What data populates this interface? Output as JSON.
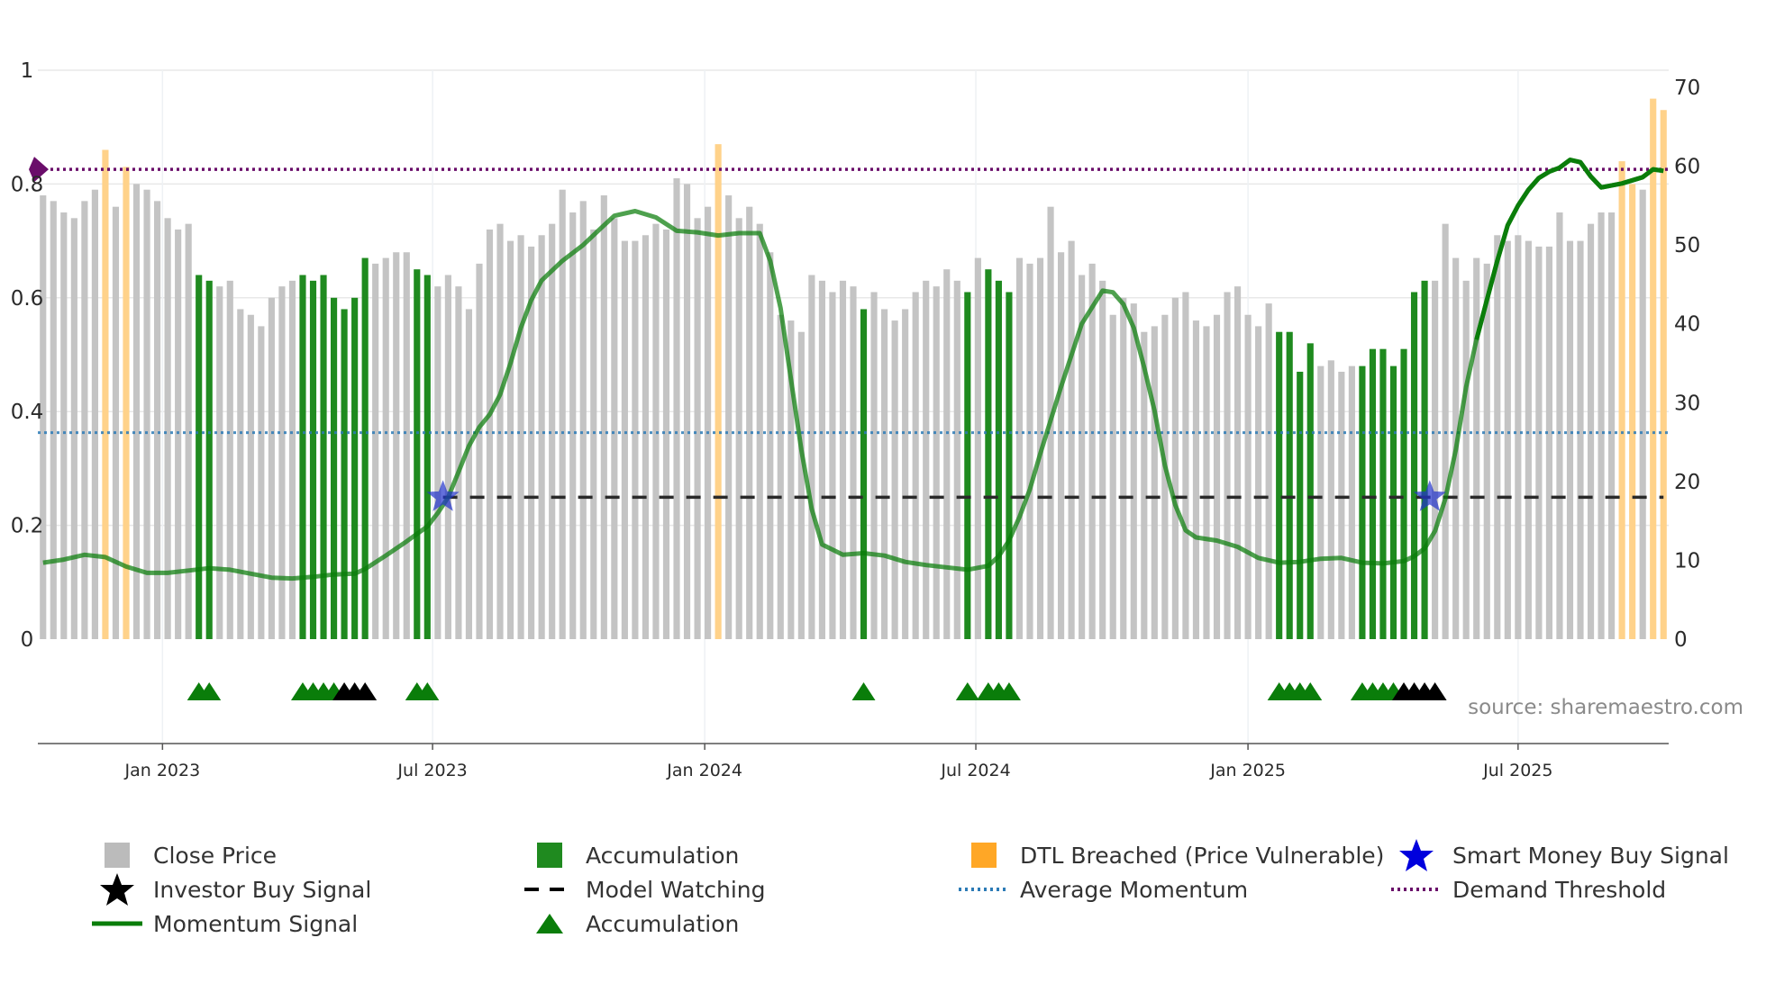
{
  "chart_data": {
    "type": "bar",
    "title": "",
    "source_label": "source: sharemaestro.com",
    "left_axis": {
      "ticks": [
        0,
        0.2,
        0.4,
        0.6,
        0.8,
        1
      ],
      "labels": [
        "0",
        "0.2",
        "0.4",
        "0.6",
        "0.8",
        "1"
      ],
      "ylim": [
        0,
        1
      ]
    },
    "right_axis": {
      "ticks": [
        0,
        10,
        20,
        30,
        40,
        50,
        60,
        70
      ],
      "labels": [
        "0",
        "10",
        "20",
        "30",
        "40",
        "50",
        "60",
        "70"
      ],
      "ylim": [
        0,
        71
      ]
    },
    "x_ticks": [
      {
        "label": "Jan 2023",
        "week": 11.5
      },
      {
        "label": "Jul 2023",
        "week": 37.5
      },
      {
        "label": "Jan 2024",
        "week": 63.7
      },
      {
        "label": "Jul 2024",
        "week": 89.8
      },
      {
        "label": "Jan 2025",
        "week": 116.0
      },
      {
        "label": "Jul 2025",
        "week": 142.0
      }
    ],
    "weeks": 157,
    "close_price": [
      0.78,
      0.77,
      0.75,
      0.74,
      0.77,
      0.79,
      0.86,
      0.76,
      0.83,
      0.8,
      0.79,
      0.77,
      0.74,
      0.72,
      0.73,
      0.64,
      0.63,
      0.62,
      0.63,
      0.58,
      0.57,
      0.55,
      0.6,
      0.62,
      0.63,
      0.64,
      0.63,
      0.64,
      0.6,
      0.58,
      0.6,
      0.67,
      0.66,
      0.67,
      0.68,
      0.68,
      0.65,
      0.64,
      0.62,
      0.64,
      0.62,
      0.58,
      0.66,
      0.72,
      0.73,
      0.7,
      0.71,
      0.69,
      0.71,
      0.73,
      0.79,
      0.75,
      0.77,
      0.72,
      0.78,
      0.74,
      0.7,
      0.7,
      0.71,
      0.73,
      0.72,
      0.81,
      0.8,
      0.74,
      0.76,
      0.87,
      0.78,
      0.74,
      0.76,
      0.73,
      0.68,
      0.57,
      0.56,
      0.54,
      0.64,
      0.63,
      0.61,
      0.63,
      0.62,
      0.58,
      0.61,
      0.58,
      0.56,
      0.58,
      0.61,
      0.63,
      0.62,
      0.65,
      0.63,
      0.61,
      0.67,
      0.65,
      0.63,
      0.61,
      0.67,
      0.66,
      0.67,
      0.76,
      0.68,
      0.7,
      0.64,
      0.66,
      0.63,
      0.57,
      0.6,
      0.59,
      0.54,
      0.55,
      0.57,
      0.6,
      0.61,
      0.56,
      0.55,
      0.57,
      0.61,
      0.62,
      0.57,
      0.55,
      0.59,
      0.54,
      0.54,
      0.47,
      0.52,
      0.48,
      0.49,
      0.47,
      0.48,
      0.48,
      0.51,
      0.51,
      0.48,
      0.51,
      0.61,
      0.63,
      0.63,
      0.73,
      0.67,
      0.63,
      0.67,
      0.66,
      0.71,
      0.7,
      0.71,
      0.7,
      0.69,
      0.69,
      0.75,
      0.7,
      0.7,
      0.73,
      0.75,
      0.75,
      0.84,
      0.8,
      0.79,
      0.95,
      0.93
    ],
    "accumulation_weeks": [
      15,
      16,
      25,
      26,
      27,
      28,
      29,
      30,
      31,
      36,
      37,
      79,
      89,
      91,
      92,
      93,
      119,
      120,
      121,
      122,
      127,
      128,
      129,
      130,
      131,
      132,
      133
    ],
    "dtl_breached_weeks": [
      6,
      8,
      65,
      152,
      153,
      155,
      156
    ],
    "accumulation_triangle_weeks": [
      15,
      16,
      25,
      26,
      27,
      28,
      36,
      37,
      79,
      89,
      91,
      92,
      93,
      119,
      120,
      121,
      122,
      127,
      128,
      129,
      130
    ],
    "investor_buy_triangle_weeks": [
      29,
      30,
      31,
      131,
      132,
      133,
      134
    ],
    "momentum_signal": [
      [
        0,
        9.7
      ],
      [
        2,
        10.1
      ],
      [
        4,
        10.7
      ],
      [
        6,
        10.4
      ],
      [
        8,
        9.2
      ],
      [
        10,
        8.4
      ],
      [
        12,
        8.4
      ],
      [
        14,
        8.7
      ],
      [
        16,
        9.0
      ],
      [
        18,
        8.8
      ],
      [
        20,
        8.3
      ],
      [
        22,
        7.8
      ],
      [
        24,
        7.7
      ],
      [
        26,
        7.9
      ],
      [
        28,
        8.2
      ],
      [
        30,
        8.3
      ],
      [
        31,
        8.9
      ],
      [
        33,
        10.6
      ],
      [
        35,
        12.4
      ],
      [
        37,
        14.3
      ],
      [
        38,
        16.0
      ],
      [
        39,
        18.0
      ],
      [
        40,
        21.2
      ],
      [
        41,
        24.5
      ],
      [
        42,
        26.9
      ],
      [
        43,
        28.5
      ],
      [
        44,
        31.0
      ],
      [
        45,
        35.0
      ],
      [
        46,
        39.5
      ],
      [
        47,
        43.0
      ],
      [
        48,
        45.5
      ],
      [
        50,
        48.0
      ],
      [
        52,
        50.0
      ],
      [
        54,
        52.5
      ],
      [
        55,
        53.7
      ],
      [
        57,
        54.3
      ],
      [
        59,
        53.5
      ],
      [
        61,
        51.8
      ],
      [
        63,
        51.6
      ],
      [
        65,
        51.2
      ],
      [
        67,
        51.5
      ],
      [
        69,
        51.5
      ],
      [
        70,
        48.0
      ],
      [
        71,
        42.0
      ],
      [
        72,
        33.0
      ],
      [
        73,
        24.0
      ],
      [
        74,
        16.5
      ],
      [
        75,
        12.0
      ],
      [
        77,
        10.7
      ],
      [
        79,
        10.9
      ],
      [
        81,
        10.6
      ],
      [
        83,
        9.8
      ],
      [
        85,
        9.4
      ],
      [
        87,
        9.1
      ],
      [
        89,
        8.8
      ],
      [
        91,
        9.3
      ],
      [
        92,
        10.5
      ],
      [
        93,
        12.5
      ],
      [
        94,
        15.5
      ],
      [
        95,
        19.0
      ],
      [
        96,
        23.5
      ],
      [
        98,
        32.0
      ],
      [
        100,
        40.0
      ],
      [
        102,
        44.2
      ],
      [
        103,
        44.0
      ],
      [
        104,
        42.5
      ],
      [
        105,
        39.5
      ],
      [
        106,
        34.5
      ],
      [
        107,
        29.0
      ],
      [
        108,
        22.0
      ],
      [
        109,
        17.0
      ],
      [
        110,
        13.8
      ],
      [
        111,
        12.9
      ],
      [
        113,
        12.5
      ],
      [
        115,
        11.7
      ],
      [
        117,
        10.3
      ],
      [
        119,
        9.7
      ],
      [
        121,
        9.8
      ],
      [
        123,
        10.2
      ],
      [
        125,
        10.3
      ],
      [
        127,
        9.7
      ],
      [
        129,
        9.6
      ],
      [
        131,
        9.9
      ],
      [
        132,
        10.5
      ],
      [
        133,
        11.5
      ],
      [
        134,
        13.7
      ],
      [
        135,
        17.8
      ],
      [
        136,
        24.0
      ],
      [
        137,
        32.0
      ],
      [
        138,
        38.0
      ],
      [
        139,
        43.0
      ],
      [
        140,
        48.0
      ],
      [
        141,
        52.5
      ],
      [
        142,
        55.0
      ],
      [
        143,
        57.0
      ],
      [
        144,
        58.5
      ],
      [
        145,
        59.3
      ],
      [
        146,
        59.8
      ],
      [
        147,
        60.8
      ],
      [
        148,
        60.5
      ],
      [
        149,
        58.7
      ],
      [
        150,
        57.3
      ],
      [
        152,
        57.8
      ],
      [
        154,
        58.6
      ],
      [
        155,
        59.6
      ],
      [
        156,
        59.4
      ]
    ],
    "average_momentum": 26.2,
    "demand_threshold": 59.6,
    "model_watching": {
      "start_week": 38.5,
      "end_week": 156,
      "value": 18.0
    },
    "smart_money_buy_signals": [
      {
        "week": 38.5,
        "value": 18.0
      },
      {
        "week": 133.5,
        "value": 18.0
      }
    ]
  },
  "legend": [
    {
      "key": "close",
      "label": "Close Price",
      "color": "#bbbbbb"
    },
    {
      "key": "accum_bar",
      "label": "Accumulation",
      "color": "#1f8a1f"
    },
    {
      "key": "dtl",
      "label": "DTL Breached (Price Vulnerable)",
      "color": "#ffa726"
    },
    {
      "key": "smart",
      "label": "Smart Money Buy Signal",
      "color": "#0000dd"
    },
    {
      "key": "investor",
      "label": "Investor Buy Signal",
      "color": "#000000"
    },
    {
      "key": "watching",
      "label": "Model Watching",
      "color": "#000000"
    },
    {
      "key": "avgmom",
      "label": "Average Momentum",
      "color": "#2c7bb6"
    },
    {
      "key": "demand",
      "label": "Demand Threshold",
      "color": "#6a0d6a"
    },
    {
      "key": "momentum",
      "label": "Momentum Signal",
      "color": "#0a7d0a"
    },
    {
      "key": "accum_tri",
      "label": "Accumulation",
      "color": "#0a7d0a"
    }
  ]
}
